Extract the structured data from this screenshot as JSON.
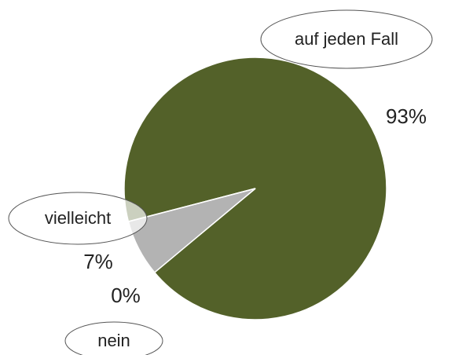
{
  "chart_data": {
    "type": "pie",
    "categories": [
      "auf jeden Fall",
      "vielleicht",
      "nein"
    ],
    "values": [
      93,
      7,
      0
    ],
    "value_labels": [
      "93%",
      "7%",
      "0%"
    ],
    "colors": [
      "#536129",
      "#b3b3b3",
      "#ffffff"
    ]
  }
}
